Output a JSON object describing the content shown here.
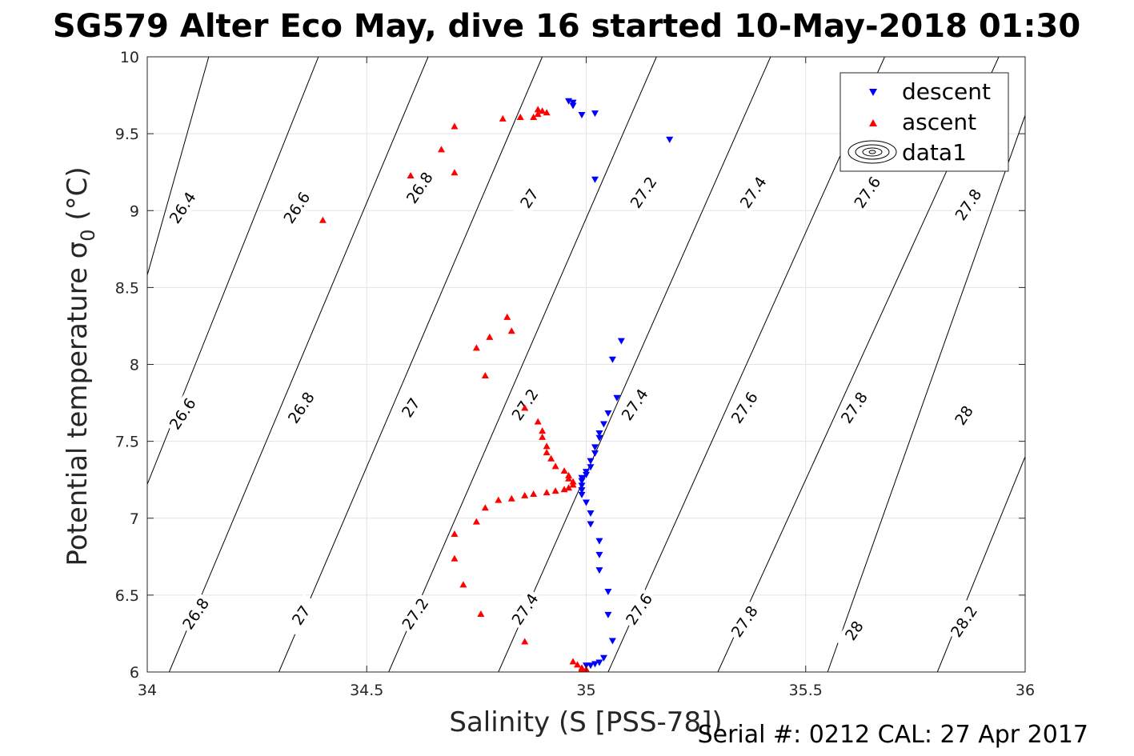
{
  "title": "SG579 Alter Eco May, dive 16 started 10-May-2018 01:30",
  "footer": "Serial #: 0212  CAL: 27 Apr 2017",
  "chart_data": {
    "type": "scatter",
    "xlabel": "Salinity (S [PSS-78])",
    "ylabel": "Potential temperature σ",
    "ylabel_sub": "0",
    "ylabel_unit": " (°C)",
    "xlim": [
      34,
      36
    ],
    "ylim": [
      6,
      10
    ],
    "xticks": [
      34,
      34.5,
      35,
      35.5,
      36
    ],
    "xtick_labels": [
      "34",
      "34.5",
      "35",
      "35.5",
      "36"
    ],
    "yticks": [
      6,
      6.5,
      7,
      7.5,
      8,
      8.5,
      9,
      9.5,
      10
    ],
    "ytick_labels": [
      "6",
      "6.5",
      "7",
      "7.5",
      "8",
      "8.5",
      "9",
      "9.5",
      "10"
    ],
    "grid": true,
    "legend_position": "top-right",
    "contours": {
      "name": "data1",
      "levels": [
        "26.4",
        "26.6",
        "26.8",
        "27",
        "27.2",
        "27.4",
        "27.6",
        "27.8",
        "28",
        "28.2"
      ],
      "lines": [
        {
          "points": [
            [
              34,
              8.58
            ],
            [
              34.14,
              10
            ]
          ]
        },
        {
          "points": [
            [
              34,
              7.22
            ],
            [
              34.39,
              10
            ]
          ]
        },
        {
          "points": [
            [
              34.05,
              6
            ],
            [
              34.64,
              10
            ]
          ]
        },
        {
          "points": [
            [
              34.3,
              6
            ],
            [
              34.9,
              10
            ]
          ]
        },
        {
          "points": [
            [
              34.55,
              6
            ],
            [
              35.16,
              10
            ]
          ]
        },
        {
          "points": [
            [
              34.8,
              6
            ],
            [
              35.42,
              10
            ]
          ]
        },
        {
          "points": [
            [
              35.05,
              6
            ],
            [
              35.68,
              10
            ]
          ]
        },
        {
          "points": [
            [
              35.3,
              6
            ],
            [
              35.94,
              10
            ]
          ]
        },
        {
          "points": [
            [
              35.55,
              6
            ],
            [
              36,
              9.62
            ]
          ]
        },
        {
          "points": [
            [
              35.8,
              6
            ],
            [
              36,
              7.4
            ]
          ]
        },
        {
          "points": [
            [
              36,
              6.05
            ],
            [
              36,
              6.05
            ]
          ]
        }
      ],
      "labels": [
        {
          "text": "26.4",
          "s": 34.08,
          "t": 9.02
        },
        {
          "text": "26.6",
          "s": 34.34,
          "t": 9.02
        },
        {
          "text": "26.8",
          "s": 34.62,
          "t": 9.15
        },
        {
          "text": "27",
          "s": 34.87,
          "t": 9.08
        },
        {
          "text": "27.2",
          "s": 35.13,
          "t": 9.12
        },
        {
          "text": "27.4",
          "s": 35.38,
          "t": 9.12
        },
        {
          "text": "27.6",
          "s": 35.64,
          "t": 9.12
        },
        {
          "text": "27.8",
          "s": 35.87,
          "t": 9.04
        },
        {
          "text": "26.6",
          "s": 34.08,
          "t": 7.68
        },
        {
          "text": "26.8",
          "s": 34.35,
          "t": 7.72
        },
        {
          "text": "27",
          "s": 34.6,
          "t": 7.72
        },
        {
          "text": "27.2",
          "s": 34.86,
          "t": 7.74
        },
        {
          "text": "27.4",
          "s": 35.11,
          "t": 7.74
        },
        {
          "text": "27.6",
          "s": 35.36,
          "t": 7.72
        },
        {
          "text": "27.8",
          "s": 35.61,
          "t": 7.72
        },
        {
          "text": "28",
          "s": 35.86,
          "t": 7.67
        },
        {
          "text": "26.8",
          "s": 34.11,
          "t": 6.38
        },
        {
          "text": "27",
          "s": 34.35,
          "t": 6.37
        },
        {
          "text": "27.2",
          "s": 34.61,
          "t": 6.38
        },
        {
          "text": "27.4",
          "s": 34.86,
          "t": 6.41
        },
        {
          "text": "27.6",
          "s": 35.12,
          "t": 6.41
        },
        {
          "text": "27.8",
          "s": 35.36,
          "t": 6.33
        },
        {
          "text": "28",
          "s": 35.61,
          "t": 6.27
        },
        {
          "text": "28.2",
          "s": 35.86,
          "t": 6.33
        }
      ]
    },
    "series": [
      {
        "name": "descent",
        "color": "#0000ff",
        "marker": "triangle-down",
        "points": [
          [
            34.96,
            9.71
          ],
          [
            34.97,
            9.7
          ],
          [
            34.97,
            9.68
          ],
          [
            34.99,
            9.62
          ],
          [
            35.02,
            9.63
          ],
          [
            35.19,
            9.46
          ],
          [
            35.02,
            9.2
          ],
          [
            35.08,
            8.15
          ],
          [
            35.06,
            8.03
          ],
          [
            35.07,
            7.78
          ],
          [
            35.05,
            7.68
          ],
          [
            35.04,
            7.61
          ],
          [
            35.03,
            7.55
          ],
          [
            35.03,
            7.52
          ],
          [
            35.02,
            7.46
          ],
          [
            35.02,
            7.42
          ],
          [
            35.01,
            7.37
          ],
          [
            35.01,
            7.33
          ],
          [
            35.0,
            7.3
          ],
          [
            35.0,
            7.28
          ],
          [
            34.99,
            7.26
          ],
          [
            34.99,
            7.24
          ],
          [
            34.99,
            7.21
          ],
          [
            34.99,
            7.18
          ],
          [
            34.99,
            7.15
          ],
          [
            35.0,
            7.1
          ],
          [
            35.01,
            7.03
          ],
          [
            35.01,
            6.96
          ],
          [
            35.03,
            6.85
          ],
          [
            35.03,
            6.76
          ],
          [
            35.03,
            6.66
          ],
          [
            35.05,
            6.52
          ],
          [
            35.05,
            6.37
          ],
          [
            35.06,
            6.2
          ],
          [
            35.04,
            6.09
          ],
          [
            35.03,
            6.06
          ],
          [
            35.02,
            6.05
          ],
          [
            35.01,
            6.04
          ],
          [
            35.0,
            6.04
          ]
        ]
      },
      {
        "name": "ascent",
        "color": "#ff0000",
        "marker": "triangle-up",
        "points": [
          [
            34.89,
            9.66
          ],
          [
            34.89,
            9.63
          ],
          [
            34.9,
            9.65
          ],
          [
            34.91,
            9.64
          ],
          [
            34.88,
            9.61
          ],
          [
            34.85,
            9.61
          ],
          [
            34.81,
            9.6
          ],
          [
            34.7,
            9.55
          ],
          [
            34.67,
            9.4
          ],
          [
            34.7,
            9.25
          ],
          [
            34.6,
            9.23
          ],
          [
            34.4,
            8.94
          ],
          [
            34.82,
            8.31
          ],
          [
            34.83,
            8.22
          ],
          [
            34.78,
            8.18
          ],
          [
            34.75,
            8.11
          ],
          [
            34.77,
            7.93
          ],
          [
            34.86,
            7.72
          ],
          [
            34.89,
            7.63
          ],
          [
            34.9,
            7.57
          ],
          [
            34.9,
            7.53
          ],
          [
            34.91,
            7.47
          ],
          [
            34.91,
            7.43
          ],
          [
            34.92,
            7.39
          ],
          [
            34.93,
            7.34
          ],
          [
            34.95,
            7.31
          ],
          [
            34.96,
            7.28
          ],
          [
            34.96,
            7.26
          ],
          [
            34.97,
            7.24
          ],
          [
            34.97,
            7.22
          ],
          [
            34.96,
            7.2
          ],
          [
            34.95,
            7.19
          ],
          [
            34.93,
            7.18
          ],
          [
            34.91,
            7.17
          ],
          [
            34.88,
            7.16
          ],
          [
            34.86,
            7.15
          ],
          [
            34.83,
            7.13
          ],
          [
            34.8,
            7.12
          ],
          [
            34.77,
            7.07
          ],
          [
            34.75,
            6.98
          ],
          [
            34.7,
            6.9
          ],
          [
            34.7,
            6.74
          ],
          [
            34.72,
            6.57
          ],
          [
            34.76,
            6.38
          ],
          [
            34.86,
            6.2
          ],
          [
            34.97,
            6.07
          ],
          [
            34.98,
            6.05
          ],
          [
            34.99,
            6.03
          ],
          [
            34.99,
            6.02
          ],
          [
            35.0,
            6.02
          ]
        ]
      }
    ],
    "legend": [
      {
        "label": "descent"
      },
      {
        "label": "ascent"
      },
      {
        "label": "data1"
      }
    ]
  }
}
